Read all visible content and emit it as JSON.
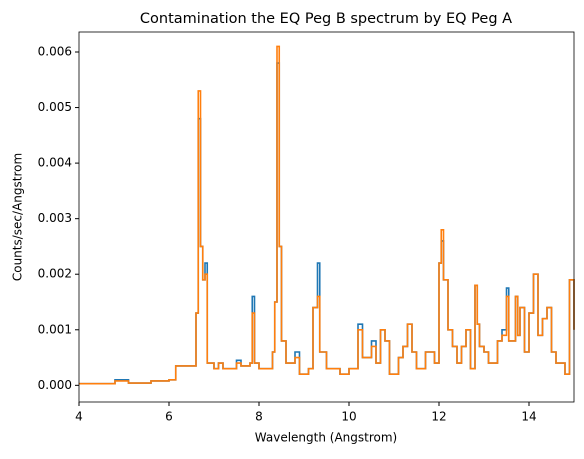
{
  "chart_data": {
    "type": "step",
    "title": "Contamination the EQ Peg B spectrum by EQ Peg A",
    "xlabel": "Wavelength (Angstrom)",
    "ylabel": "Counts/sec/Angstrom",
    "x": [
      4.0,
      4.8,
      5.1,
      5.6,
      6.0,
      6.15,
      6.6,
      6.65,
      6.7,
      6.75,
      6.8,
      6.85,
      7.0,
      7.1,
      7.2,
      7.5,
      7.6,
      7.8,
      7.85,
      7.9,
      8.0,
      8.3,
      8.35,
      8.4,
      8.45,
      8.5,
      8.6,
      8.8,
      8.9,
      9.1,
      9.2,
      9.3,
      9.35,
      9.5,
      9.8,
      10.0,
      10.2,
      10.3,
      10.5,
      10.6,
      10.7,
      10.8,
      10.9,
      11.1,
      11.2,
      11.3,
      11.4,
      11.5,
      11.7,
      11.9,
      12.0,
      12.05,
      12.1,
      12.2,
      12.3,
      12.4,
      12.5,
      12.6,
      12.7,
      12.8,
      12.85,
      12.9,
      13.0,
      13.1,
      13.3,
      13.4,
      13.5,
      13.55,
      13.7,
      13.75,
      13.8,
      13.9,
      14.0,
      14.1,
      14.2,
      14.3,
      14.4,
      14.5,
      14.6,
      14.8,
      14.9,
      15.0
    ],
    "series": [
      {
        "color": "#1f77b4",
        "values": [
          3e-05,
          0.0001,
          4e-05,
          8e-05,
          0.0001,
          0.00035,
          0.0013,
          0.0048,
          0.0025,
          0.0019,
          0.0022,
          0.0004,
          0.0003,
          0.0004,
          0.0003,
          0.00045,
          0.00035,
          0.0004,
          0.0016,
          0.0004,
          0.0003,
          0.0006,
          0.0015,
          0.0058,
          0.0025,
          0.0008,
          0.0004,
          0.0006,
          0.0002,
          0.0003,
          0.0014,
          0.0022,
          0.0006,
          0.0003,
          0.0002,
          0.0003,
          0.0011,
          0.0005,
          0.0008,
          0.0004,
          0.001,
          0.0008,
          0.0002,
          0.0005,
          0.0007,
          0.0011,
          0.0006,
          0.0003,
          0.0006,
          0.0004,
          0.0022,
          0.0026,
          0.0019,
          0.001,
          0.0007,
          0.0004,
          0.0007,
          0.001,
          0.0003,
          0.0018,
          0.0011,
          0.0007,
          0.0006,
          0.0004,
          0.0008,
          0.001,
          0.00175,
          0.0008,
          0.0016,
          0.0009,
          0.0014,
          0.0006,
          0.0013,
          0.002,
          0.0009,
          0.0012,
          0.0014,
          0.0006,
          0.0004,
          0.0002,
          0.0019,
          0.001
        ]
      },
      {
        "color": "#ff7f0e",
        "values": [
          3e-05,
          8e-05,
          4e-05,
          8e-05,
          0.0001,
          0.00035,
          0.0013,
          0.0053,
          0.0025,
          0.0019,
          0.002,
          0.0004,
          0.0003,
          0.0004,
          0.0003,
          0.0004,
          0.00035,
          0.0004,
          0.0013,
          0.0004,
          0.0003,
          0.0006,
          0.0015,
          0.0061,
          0.0025,
          0.0008,
          0.0004,
          0.0005,
          0.0002,
          0.0003,
          0.0014,
          0.0016,
          0.0006,
          0.0003,
          0.0002,
          0.0003,
          0.001,
          0.0005,
          0.0007,
          0.0004,
          0.001,
          0.0008,
          0.0002,
          0.0005,
          0.0007,
          0.0011,
          0.0006,
          0.0003,
          0.0006,
          0.0004,
          0.0022,
          0.0028,
          0.0019,
          0.001,
          0.0007,
          0.0004,
          0.0007,
          0.001,
          0.0003,
          0.0018,
          0.0011,
          0.0007,
          0.0006,
          0.0004,
          0.0008,
          0.0009,
          0.0016,
          0.0008,
          0.0016,
          0.0009,
          0.0014,
          0.0006,
          0.0013,
          0.002,
          0.0009,
          0.0012,
          0.0014,
          0.0006,
          0.0004,
          0.0002,
          0.0019,
          0.001
        ]
      }
    ],
    "xlim": [
      4,
      15
    ],
    "xticks": [
      4,
      6,
      8,
      10,
      12,
      14
    ],
    "ylim": [
      -0.0003,
      0.00636
    ],
    "yticks": [
      {
        "value": 0,
        "label": "0.000"
      },
      {
        "value": 0.001,
        "label": "0.001"
      },
      {
        "value": 0.002,
        "label": "0.002"
      },
      {
        "value": 0.003,
        "label": "0.003"
      },
      {
        "value": 0.004,
        "label": "0.004"
      },
      {
        "value": 0.005,
        "label": "0.005"
      },
      {
        "value": 0.006,
        "label": "0.006"
      }
    ]
  }
}
